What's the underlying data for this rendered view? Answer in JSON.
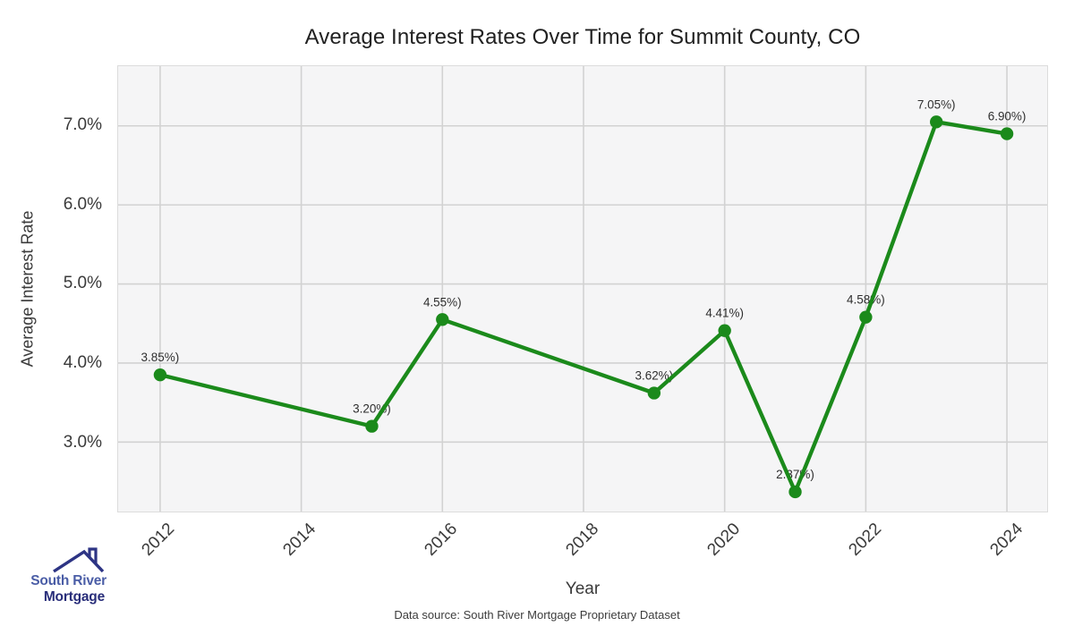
{
  "footer": {
    "text": "Data source: South River Mortgage Proprietary Dataset"
  },
  "logo": {
    "line1": "South River",
    "line2": "Mortgage"
  },
  "icons": {
    "roof": "house-roof-icon"
  },
  "chart_data": {
    "type": "line",
    "title": "Average Interest Rates Over Time for Summit County, CO",
    "xlabel": "Year",
    "ylabel": "Average Interest Rate",
    "x": [
      2012,
      2015,
      2016,
      2019,
      2020,
      2021,
      2022,
      2023,
      2024
    ],
    "values": [
      3.85,
      3.2,
      4.55,
      3.62,
      4.41,
      2.37,
      4.58,
      7.05,
      6.9
    ],
    "point_labels": [
      "3.85%)",
      "3.20%)",
      "4.55%)",
      "3.62%)",
      "4.41%)",
      "2.37%)",
      "4.58%)",
      "7.05%)",
      "6.90%)"
    ],
    "xticks": [
      2012,
      2014,
      2016,
      2018,
      2020,
      2022,
      2024
    ],
    "yticks": [
      {
        "value": 3.0,
        "label": "3.0%"
      },
      {
        "value": 4.0,
        "label": "4.0%"
      },
      {
        "value": 5.0,
        "label": "5.0%"
      },
      {
        "value": 6.0,
        "label": "6.0%"
      },
      {
        "value": 7.0,
        "label": "7.0%"
      }
    ],
    "xlim": [
      2011.405,
      2024.57
    ],
    "ylim": [
      2.121,
      7.755
    ],
    "grid": true,
    "legend": false,
    "line_color": "#1b8a1b",
    "marker_color": "#1b8a1b",
    "grid_color": "#d2d2d2",
    "plot_bg": "#f5f5f6",
    "label_color": "#2f2f2f",
    "logo_blue": "#4a5da6",
    "logo_navy": "#2d3484"
  }
}
